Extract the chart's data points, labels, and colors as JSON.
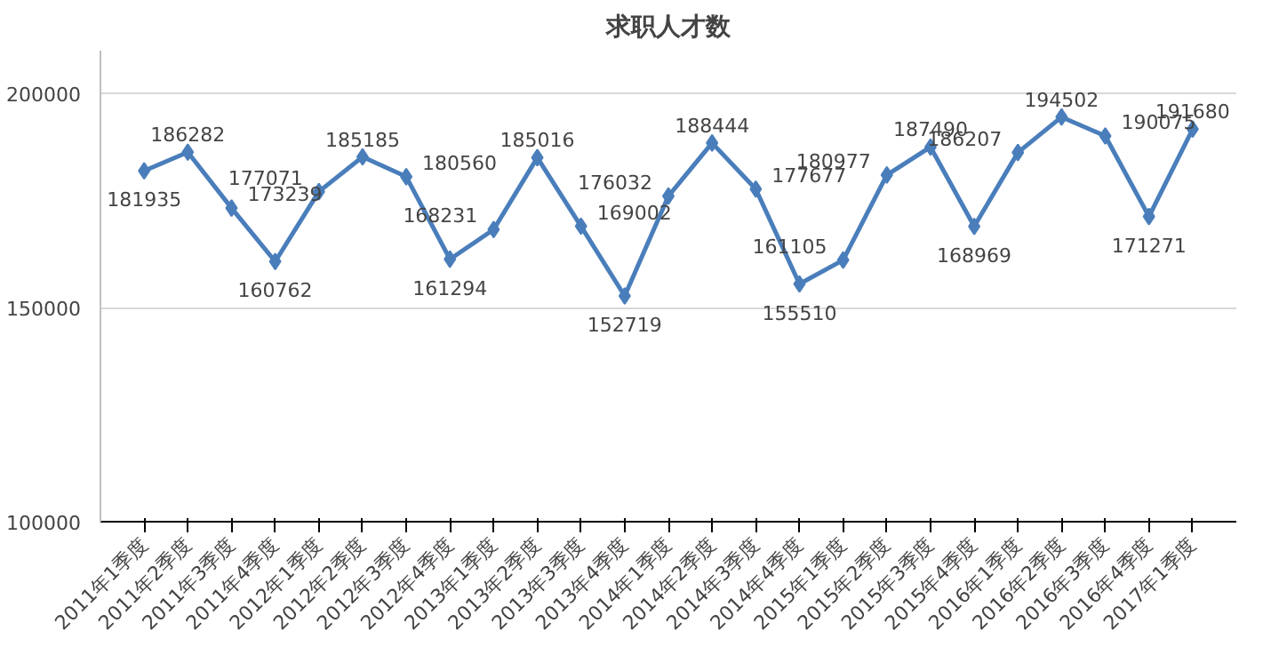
{
  "chart_data": {
    "type": "line",
    "title": "求职人才数",
    "categories": [
      "2011年1季度",
      "2011年2季度",
      "2011年3季度",
      "2011年4季度",
      "2012年1季度",
      "2012年2季度",
      "2012年3季度",
      "2012年4季度",
      "2013年1季度",
      "2013年2季度",
      "2013年3季度",
      "2013年4季度",
      "2014年1季度",
      "2014年2季度",
      "2014年3季度",
      "2014年4季度",
      "2015年1季度",
      "2015年2季度",
      "2015年3季度",
      "2015年4季度",
      "2016年1季度",
      "2016年2季度",
      "2016年3季度",
      "2016年4季度",
      "2017年1季度"
    ],
    "series": [
      {
        "color": "#4a7ebb",
        "values": [
          181935,
          186282,
          173239,
          160762,
          177071,
          185185,
          180560,
          161294,
          168231,
          185016,
          169002,
          152719,
          176032,
          188444,
          177677,
          155510,
          161105,
          180977,
          187490,
          168969,
          186207,
          194502,
          190075,
          171271,
          191680
        ]
      }
    ],
    "ylim": [
      100000,
      210000
    ],
    "yticks": [
      100000,
      150000,
      200000
    ],
    "grid": "y",
    "marker": "diamond",
    "line_style": "solid",
    "data_labels": true
  }
}
